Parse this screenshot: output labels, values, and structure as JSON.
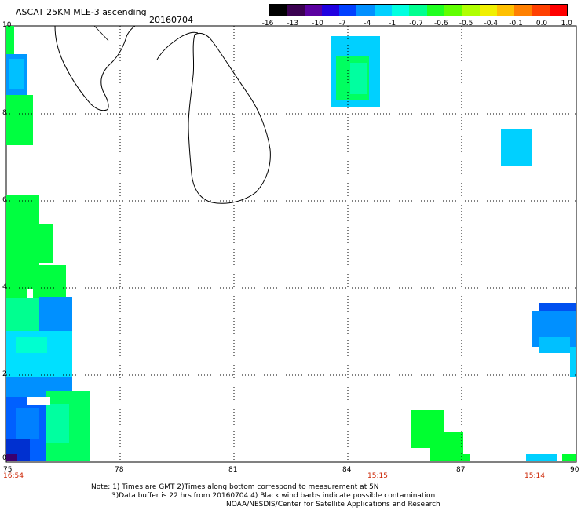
{
  "header": {
    "title": "ASCAT 25KM MLE-3 ascending",
    "date": "20160704"
  },
  "colorbar": {
    "labels": [
      "-16",
      "-13",
      "-10",
      "-7",
      "-4",
      "-1",
      "-0.7",
      "-0.6",
      "-0.5",
      "-0.4",
      "-0.1",
      "0.0",
      "1.0"
    ],
    "colors": [
      "#000000",
      "#3a0050",
      "#5a00a0",
      "#2000e0",
      "#0040ff",
      "#0090ff",
      "#00d0ff",
      "#00ffe0",
      "#00ff90",
      "#20ff20",
      "#60ff00",
      "#b0ff00",
      "#f0f000",
      "#ffc000",
      "#ff8000",
      "#ff4000",
      "#ff0000"
    ]
  },
  "axes": {
    "lat_labels": [
      "10",
      "8",
      "6",
      "4",
      "2",
      "0"
    ],
    "lon_labels": [
      "75",
      "78",
      "81",
      "84",
      "87",
      "90"
    ]
  },
  "time_labels": [
    "16:54",
    "15:15",
    "15:14"
  ],
  "notes": {
    "line1": "Note: 1) Times are GMT 2)Times along bottom correspond to measurement at 5N",
    "line2": "3)Data buffer is 22 hrs from 20160704 4) Black wind barbs indicate possible contamination",
    "line3": "NOAA/NESDIS/Center for Satellite Applications and Research"
  }
}
